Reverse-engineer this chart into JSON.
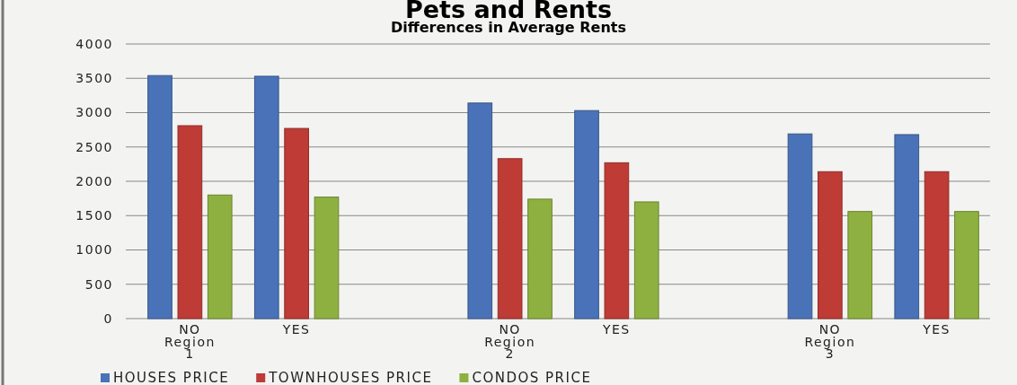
{
  "chart_data": {
    "type": "bar",
    "title": "Pets and Rents",
    "subtitle": "Differences in Average Rents",
    "categories": [
      "NO",
      "YES",
      null,
      "NO",
      "YES",
      null,
      "NO",
      "YES"
    ],
    "series": [
      {
        "name": "HOUSES PRICE",
        "color": "#4a72b8",
        "values": [
          3540,
          3530,
          null,
          3140,
          3030,
          null,
          2690,
          2680
        ]
      },
      {
        "name": "TOWNHOUSES PRICE",
        "color": "#be3b36",
        "values": [
          2810,
          2770,
          null,
          2330,
          2270,
          null,
          2140,
          2140
        ]
      },
      {
        "name": "CONDOS PRICE",
        "color": "#8eb040",
        "values": [
          1800,
          1770,
          null,
          1740,
          1700,
          null,
          1560,
          1560
        ]
      }
    ],
    "annotations": [
      "Region 1",
      "Region 2",
      "Region 3"
    ],
    "ylim": [
      0,
      4000
    ],
    "yticks": [
      0,
      500,
      1000,
      1500,
      2000,
      2500,
      3000,
      3500,
      4000
    ],
    "grid": "y",
    "legend": "bottom"
  }
}
